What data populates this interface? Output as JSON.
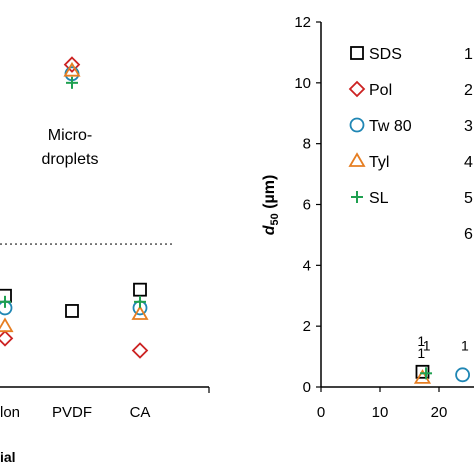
{
  "chart_data": [
    {
      "type": "scatter",
      "title": "",
      "xlabel": "ial",
      "ylabel": "",
      "categories": [
        "lon",
        "PVDF",
        "CA"
      ],
      "annotation": "Micro-\ndroplets",
      "annotation_lines": [
        "Micro-",
        "droplets"
      ],
      "ylim": [
        0,
        12
      ],
      "series": [
        {
          "name": "SDS",
          "marker": "square",
          "color": "#000000",
          "points": [
            {
              "cat": "lon",
              "y": 3.0
            },
            {
              "cat": "PVDF",
              "y": 2.5
            },
            {
              "cat": "CA",
              "y": 3.2
            }
          ]
        },
        {
          "name": "Pol",
          "marker": "diamond",
          "color": "#cc2222",
          "points": [
            {
              "cat": "lon",
              "y": 1.6
            },
            {
              "cat": "CA",
              "y": 1.2
            },
            {
              "cat": "PVDF",
              "y": 10.6
            }
          ]
        },
        {
          "name": "Tw 80",
          "marker": "circle",
          "color": "#1f86b4",
          "points": [
            {
              "cat": "lon",
              "y": 2.6
            },
            {
              "cat": "CA",
              "y": 2.6
            },
            {
              "cat": "PVDF",
              "y": 10.3
            }
          ]
        },
        {
          "name": "Tyl",
          "marker": "triangle",
          "color": "#e67e22",
          "points": [
            {
              "cat": "lon",
              "y": 2.0
            },
            {
              "cat": "CA",
              "y": 2.4
            },
            {
              "cat": "PVDF",
              "y": 10.4
            }
          ]
        },
        {
          "name": "SL",
          "marker": "plus",
          "color": "#1fa050",
          "points": [
            {
              "cat": "lon",
              "y": 2.8
            },
            {
              "cat": "CA",
              "y": 2.8
            },
            {
              "cat": "PVDF",
              "y": 10.0
            }
          ]
        }
      ],
      "threshold_line": {
        "y": 4.7,
        "style": "dotted"
      }
    },
    {
      "type": "scatter",
      "title": "",
      "ylabel": "d50 (µm)",
      "ylabel_parts": {
        "main": "d",
        "sub": "50",
        "unit": " (µm)"
      },
      "xlabel": "",
      "xlim": [
        0,
        25
      ],
      "ylim": [
        0,
        12
      ],
      "xticks": [
        "0",
        "10",
        "20"
      ],
      "xtick_values": [
        0,
        10,
        20
      ],
      "yticks": [
        "0",
        "2",
        "4",
        "6",
        "8",
        "10",
        "12"
      ],
      "ytick_values": [
        0,
        2,
        4,
        6,
        8,
        10,
        12
      ],
      "legend_position": "top-left",
      "legend": [
        {
          "label": "SDS",
          "marker": "square",
          "color": "#000000",
          "side_number": "1"
        },
        {
          "label": "Pol",
          "marker": "diamond",
          "color": "#cc2222",
          "side_number": "2"
        },
        {
          "label": "Tw 80",
          "marker": "circle",
          "color": "#1f86b4",
          "side_number": "3"
        },
        {
          "label": "Tyl",
          "marker": "triangle",
          "color": "#e67e22",
          "side_number": "4"
        },
        {
          "label": "SL",
          "marker": "plus",
          "color": "#1fa050",
          "side_number": "5"
        },
        {
          "label": "",
          "marker": "none",
          "color": "#000000",
          "side_number": "6"
        }
      ],
      "points": [
        {
          "series": "SDS",
          "marker": "square",
          "color": "#000000",
          "x": 17.2,
          "y": 0.5
        },
        {
          "series": "Tyl",
          "marker": "triangle",
          "color": "#e67e22",
          "x": 17.2,
          "y": 0.3
        },
        {
          "series": "SL",
          "marker": "plus",
          "color": "#1fa050",
          "x": 17.8,
          "y": 0.45
        },
        {
          "series": "Tw 80",
          "marker": "circle",
          "color": "#1f86b4",
          "x": 24.0,
          "y": 0.4
        }
      ],
      "point_labels": [
        {
          "text": "1",
          "color": "#000000",
          "x": 17.0,
          "y": 1.35
        },
        {
          "text": "1",
          "color": "#e67e22",
          "x": 17.0,
          "y": 0.95
        },
        {
          "text": "1",
          "color": "#1fa050",
          "x": 17.9,
          "y": 1.2
        },
        {
          "text": "1",
          "color": "#1f86b4",
          "x": 24.4,
          "y": 1.2
        }
      ]
    }
  ]
}
